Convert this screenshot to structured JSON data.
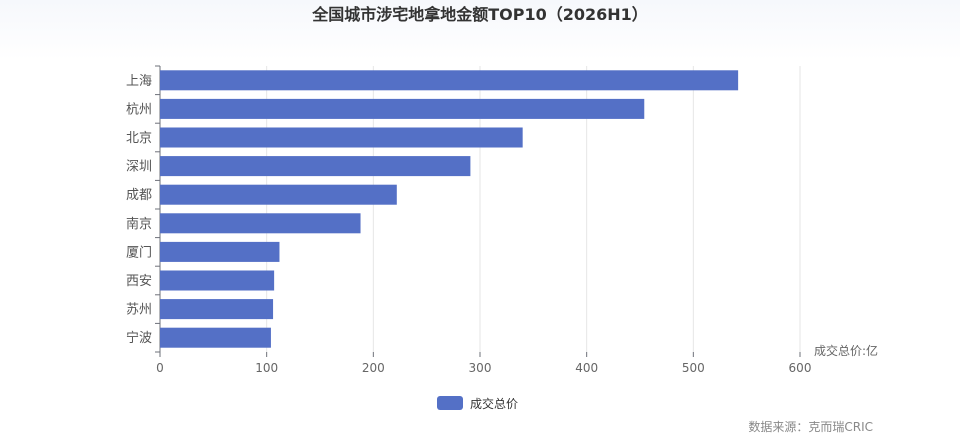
{
  "chart_data": {
    "type": "bar",
    "orientation": "horizontal",
    "title": "全国城市涉宅地拿地金额TOP10（2026H1）",
    "xlabel": "成交总价:亿",
    "ylabel": "",
    "categories": [
      "上海",
      "杭州",
      "北京",
      "深圳",
      "成都",
      "南京",
      "厦门",
      "西安",
      "苏州",
      "宁波"
    ],
    "series": [
      {
        "name": "成交总价",
        "values": [
          542,
          454,
          340,
          291,
          222,
          188,
          112,
          107,
          106,
          104
        ],
        "color": "#5470c6"
      }
    ],
    "xlim": [
      0,
      600
    ],
    "xticks": [
      "0",
      "100",
      "200",
      "300",
      "400",
      "500",
      "600"
    ],
    "grid": true,
    "legend": "bottom-center",
    "source": "数据来源：克而瑞CRIC"
  }
}
